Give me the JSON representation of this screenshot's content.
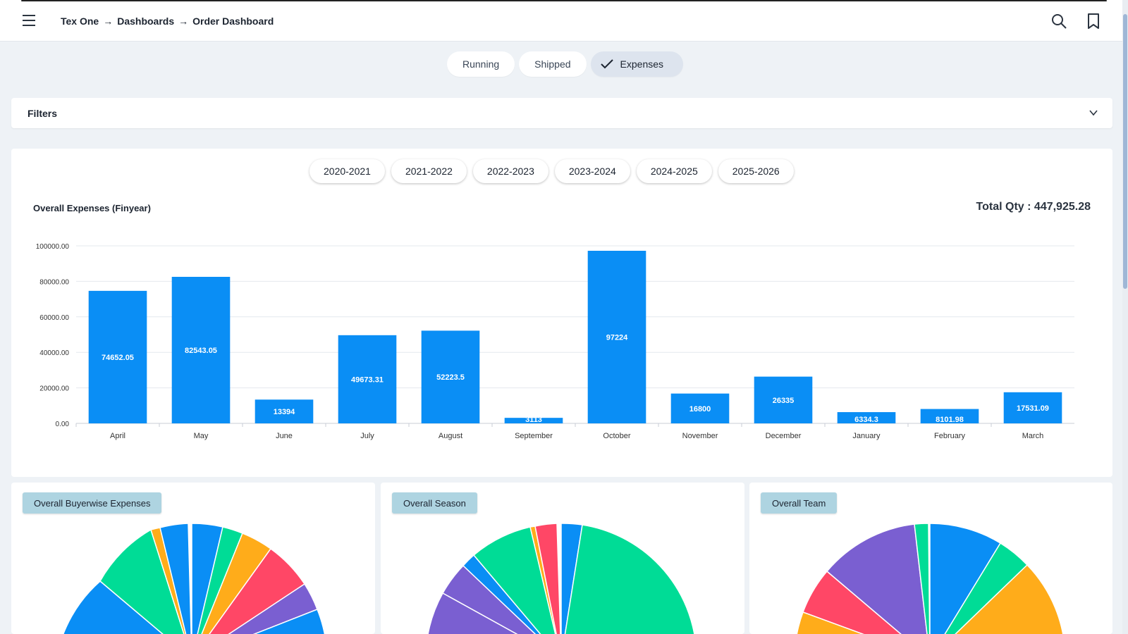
{
  "header": {
    "breadcrumb": [
      "Tex One",
      "Dashboards",
      "Order Dashboard"
    ],
    "separator": "→"
  },
  "tabs": [
    {
      "label": "Running",
      "active": false
    },
    {
      "label": "Shipped",
      "active": false
    },
    {
      "label": "Expenses",
      "active": true
    }
  ],
  "filters": {
    "label": "Filters"
  },
  "years": [
    "2020-2021",
    "2021-2022",
    "2022-2023",
    "2023-2024",
    "2024-2025",
    "2025-2026"
  ],
  "chart": {
    "title": "Overall Expenses (Finyear)",
    "total_label": "Total Qty : 447,925.28"
  },
  "chart_data": {
    "type": "bar",
    "categories": [
      "April",
      "May",
      "June",
      "July",
      "August",
      "September",
      "October",
      "November",
      "December",
      "January",
      "February",
      "March"
    ],
    "values": [
      74652.05,
      82543.05,
      13394,
      49673.31,
      52223.5,
      3113,
      97224,
      16800,
      26335,
      6334.3,
      8101.98,
      17531.09
    ],
    "value_labels": [
      "74652.05",
      "82543.05",
      "13394",
      "49673.31",
      "52223.5",
      "3113",
      "97224",
      "16800",
      "26335",
      "6334.3",
      "8101.98",
      "17531.09"
    ],
    "yticks": [
      "0.00",
      "20000.00",
      "40000.00",
      "60000.00",
      "80000.00",
      "100000.00"
    ],
    "ylim": [
      0,
      100000
    ],
    "grid": true,
    "bar_color": "#0a8ef5"
  },
  "pies": [
    {
      "title": "Overall Buyerwise Expenses"
    },
    {
      "title": "Overall Season"
    },
    {
      "title": "Overall Team"
    }
  ],
  "colors": {
    "accent": "#0a8ef5",
    "tag_bg": "#aed4e1"
  }
}
